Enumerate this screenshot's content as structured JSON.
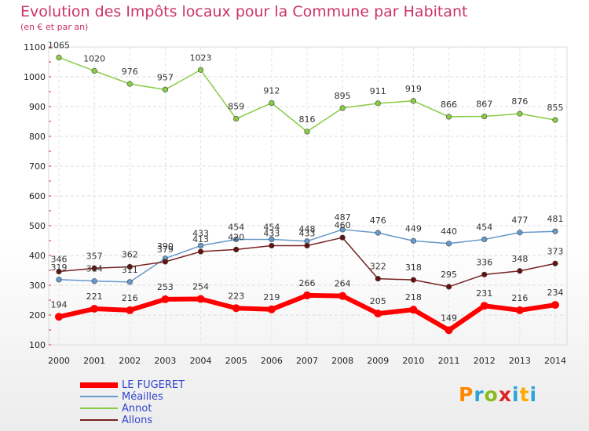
{
  "title": "Evolution des Impôts locaux pour la Commune par Habitant",
  "subtitle": "(en € et par an)",
  "logo_text": "Proxiti",
  "chart_data": {
    "type": "line",
    "title": "Evolution des Impôts locaux pour la Commune par Habitant",
    "subtitle": "(en € et par an)",
    "xlabel": "",
    "ylabel": "",
    "x": [
      "2000",
      "2001",
      "2002",
      "2003",
      "2004",
      "2005",
      "2006",
      "2007",
      "2008",
      "2009",
      "2010",
      "2011",
      "2012",
      "2013",
      "2014"
    ],
    "ylim": [
      100,
      1100
    ],
    "yticks": [
      100,
      200,
      300,
      400,
      500,
      600,
      700,
      800,
      900,
      1000,
      1100
    ],
    "grid": true,
    "legend_placement": "bottom-left",
    "series": [
      {
        "name": "LE FUGERET",
        "color": "#ff0000",
        "values": [
          194,
          221,
          216,
          253,
          254,
          223,
          219,
          266,
          264,
          205,
          218,
          149,
          231,
          216,
          234
        ]
      },
      {
        "name": "Méailles",
        "color": "#6699cc",
        "values": [
          319,
          314,
          311,
          390,
          433,
          454,
          454,
          448,
          487,
          476,
          449,
          440,
          454,
          477,
          481
        ]
      },
      {
        "name": "Annot",
        "color": "#88cc44",
        "values": [
          1065,
          1020,
          976,
          957,
          1023,
          859,
          912,
          816,
          895,
          911,
          919,
          866,
          867,
          876,
          855
        ]
      },
      {
        "name": "Allons",
        "color": "#772222",
        "values": [
          346,
          357,
          362,
          379,
          413,
          420,
          433,
          433,
          460,
          322,
          318,
          295,
          336,
          348,
          373
        ]
      }
    ]
  }
}
